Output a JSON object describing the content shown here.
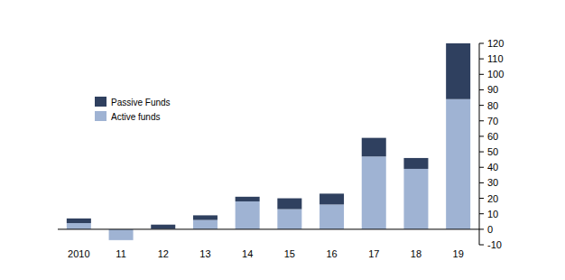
{
  "chart_data": {
    "type": "bar",
    "stacked": true,
    "grid": false,
    "legend": "upper left",
    "categories": [
      "2010",
      "11",
      "12",
      "13",
      "14",
      "15",
      "16",
      "17",
      "18",
      "19"
    ],
    "series": [
      {
        "name": "Active funds",
        "color": "#9fb3d3",
        "values": [
          4,
          -7,
          0.5,
          6,
          18,
          13,
          16,
          47,
          39,
          84
        ]
      },
      {
        "name": "Passive Funds",
        "color": "#2f405f",
        "values": [
          3,
          0,
          2.5,
          3,
          3,
          7,
          7,
          12,
          7,
          36
        ]
      }
    ],
    "ylim": [
      -10,
      120
    ],
    "yticks": [
      -10,
      0,
      10,
      20,
      30,
      40,
      50,
      60,
      70,
      80,
      90,
      100,
      110,
      120
    ]
  }
}
